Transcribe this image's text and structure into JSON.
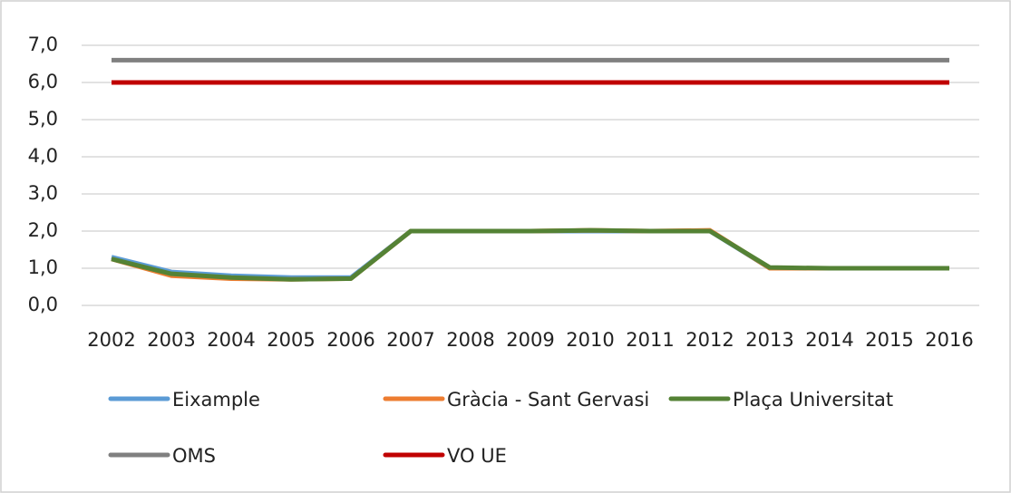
{
  "chart_data": {
    "type": "line",
    "categories": [
      "2002",
      "2003",
      "2004",
      "2005",
      "2006",
      "2007",
      "2008",
      "2009",
      "2010",
      "2011",
      "2012",
      "2013",
      "2014",
      "2015",
      "2016"
    ],
    "series": [
      {
        "name": "Eixample",
        "color": "#5b9bd5",
        "values": [
          1.3,
          0.9,
          0.8,
          0.75,
          0.75,
          2.0,
          2.0,
          2.0,
          2.0,
          2.0,
          2.0,
          1.0,
          1.0,
          1.0,
          1.0
        ]
      },
      {
        "name": "Gràcia - Sant Gervasi",
        "color": "#ed7d31",
        "values": [
          1.25,
          0.8,
          0.72,
          0.7,
          0.72,
          2.0,
          2.0,
          2.0,
          2.02,
          2.0,
          2.02,
          1.0,
          1.0,
          1.0,
          1.0
        ]
      },
      {
        "name": "Plaça Universitat",
        "color": "#548235",
        "values": [
          1.25,
          0.85,
          0.75,
          0.7,
          0.72,
          2.0,
          2.0,
          2.0,
          2.02,
          2.0,
          2.0,
          1.02,
          1.0,
          1.0,
          1.0
        ]
      },
      {
        "name": "OMS",
        "color": "#808080",
        "values": [
          6.6,
          6.6,
          6.6,
          6.6,
          6.6,
          6.6,
          6.6,
          6.6,
          6.6,
          6.6,
          6.6,
          6.6,
          6.6,
          6.6,
          6.6
        ]
      },
      {
        "name": "VO UE",
        "color": "#c00000",
        "values": [
          6.0,
          6.0,
          6.0,
          6.0,
          6.0,
          6.0,
          6.0,
          6.0,
          6.0,
          6.0,
          6.0,
          6.0,
          6.0,
          6.0,
          6.0
        ]
      }
    ],
    "ylim": [
      0,
      7
    ],
    "yticks": [
      {
        "value": 0,
        "label": "0,0"
      },
      {
        "value": 1,
        "label": "1,0"
      },
      {
        "value": 2,
        "label": "2,0"
      },
      {
        "value": 3,
        "label": "3,0"
      },
      {
        "value": 4,
        "label": "4,0"
      },
      {
        "value": 5,
        "label": "5,0"
      },
      {
        "value": 6,
        "label": "6,0"
      },
      {
        "value": 7,
        "label": "7,0"
      }
    ],
    "grid": true
  }
}
